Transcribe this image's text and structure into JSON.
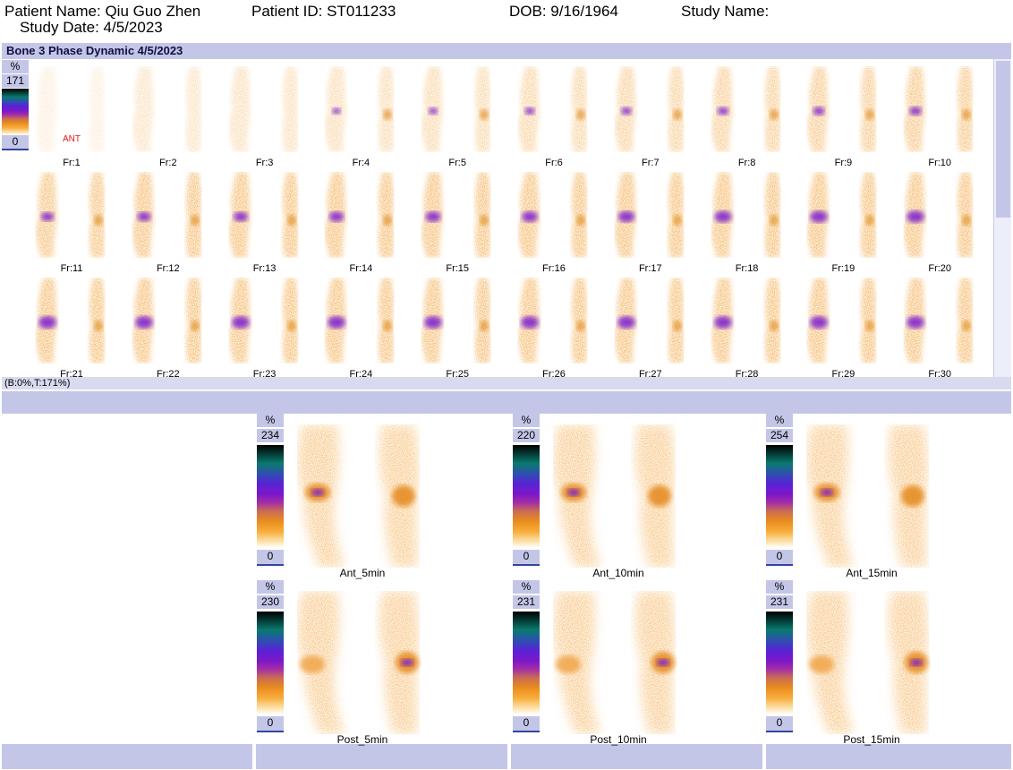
{
  "header": {
    "patient_name": "Patient Name: Qiu Guo Zhen",
    "patient_id": "Patient ID: ST011233",
    "dob": "DOB: 9/16/1964",
    "study_name": "Study Name:",
    "study_date": "Study Date: 4/5/2023"
  },
  "dynamic": {
    "title": "Bone 3 Phase Dynamic 4/5/2023",
    "scale": {
      "unit": "%",
      "max": "171",
      "min": "0"
    },
    "view_label": "ANT",
    "status": "(B:0%,T:171%)",
    "frames": [
      "Fr:1",
      "Fr:2",
      "Fr:3",
      "Fr:4",
      "Fr:5",
      "Fr:6",
      "Fr:7",
      "Fr:8",
      "Fr:9",
      "Fr:10",
      "Fr:11",
      "Fr:12",
      "Fr:13",
      "Fr:14",
      "Fr:15",
      "Fr:16",
      "Fr:17",
      "Fr:18",
      "Fr:19",
      "Fr:20",
      "Fr:21",
      "Fr:22",
      "Fr:23",
      "Fr:24",
      "Fr:25",
      "Fr:26",
      "Fr:27",
      "Fr:28",
      "Fr:29",
      "Fr:30"
    ]
  },
  "static_images": [
    {
      "label": "Ant_5min",
      "unit": "%",
      "max": "234",
      "min": "0"
    },
    {
      "label": "Ant_10min",
      "unit": "%",
      "max": "220",
      "min": "0"
    },
    {
      "label": "Ant_15min",
      "unit": "%",
      "max": "254",
      "min": "0"
    },
    {
      "label": "Post_5min",
      "unit": "%",
      "max": "230",
      "min": "0"
    },
    {
      "label": "Post_10min",
      "unit": "%",
      "max": "231",
      "min": "0"
    },
    {
      "label": "Post_15min",
      "unit": "%",
      "max": "231",
      "min": "0"
    }
  ],
  "colors": {
    "bar": "#c4c6e8",
    "tracer_light": "#f9c77c",
    "tracer_mid": "#ee9a2a",
    "tracer_hot": "#7a1fd0"
  }
}
